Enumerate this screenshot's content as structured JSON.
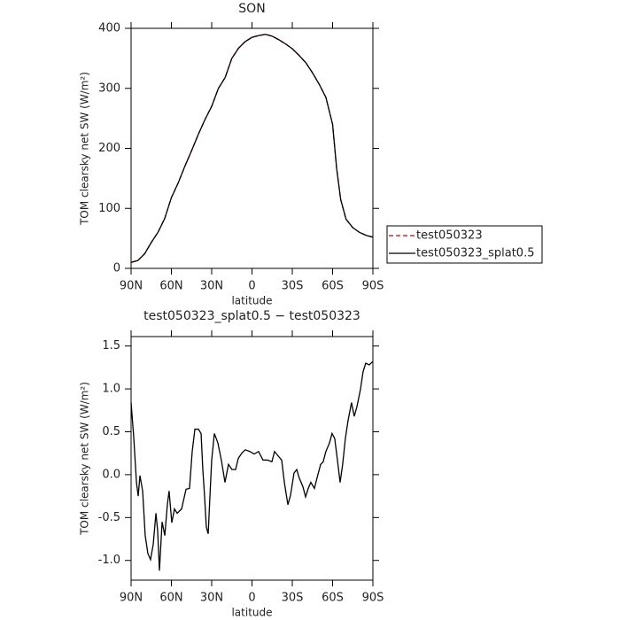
{
  "chart_data": [
    {
      "type": "line",
      "title": "SON",
      "xlabel": "latitude",
      "ylabel": "TOM clearsky net SW (W/m²)",
      "x": [
        90,
        85,
        80,
        75,
        70,
        65,
        60,
        55,
        50,
        45,
        40,
        35,
        30,
        25,
        20,
        15,
        10,
        5,
        0,
        -5,
        -10,
        -15,
        -20,
        -25,
        -30,
        -35,
        -40,
        -45,
        -50,
        -55,
        -60,
        -63,
        -66,
        -70,
        -75,
        -80,
        -85,
        -90
      ],
      "series": [
        {
          "name": "test050323",
          "color": "#cc0000",
          "linestyle": "dashed",
          "values": [
            10,
            13,
            24,
            43,
            60,
            83,
            118,
            142,
            170,
            196,
            223,
            248,
            270,
            300,
            318,
            350,
            367,
            378,
            385,
            388,
            390,
            387,
            381,
            374,
            366,
            355,
            343,
            326,
            307,
            285,
            240,
            167,
            115,
            82,
            68,
            60,
            55,
            52
          ]
        },
        {
          "name": "test050323_splat0.5",
          "color": "#000000",
          "linestyle": "solid",
          "values": [
            10,
            13,
            24,
            43,
            60,
            83,
            118,
            142,
            170,
            196,
            223,
            248,
            270,
            300,
            318,
            350,
            367,
            378,
            385,
            388,
            390,
            387,
            381,
            374,
            366,
            355,
            343,
            326,
            307,
            285,
            240,
            167,
            115,
            82,
            68,
            60,
            55,
            52
          ]
        }
      ],
      "xlim": [
        90,
        -90
      ],
      "xticks": [
        {
          "value": 90,
          "label": "90N"
        },
        {
          "value": 60,
          "label": "60N"
        },
        {
          "value": 30,
          "label": "30N"
        },
        0,
        {
          "value": -30,
          "label": "30S"
        },
        {
          "value": -60,
          "label": "60S"
        },
        {
          "value": -90,
          "label": "90S"
        }
      ],
      "ylim": [
        0,
        400
      ],
      "yticks": [
        0,
        100,
        200,
        300,
        400
      ],
      "legend": "right"
    },
    {
      "type": "line",
      "title": "test050323_splat0.5 − test050323",
      "xlabel": "latitude",
      "ylabel": "TOM clearsky net SW (W/m²)",
      "x": [
        90,
        88,
        86,
        84.7,
        83.4,
        81.4,
        79.5,
        77.5,
        75.5,
        73.5,
        71.5,
        70.2,
        68.9,
        66.9,
        64.9,
        63,
        61.7,
        59.7,
        57.7,
        55.7,
        52.4,
        49.1,
        46.5,
        44.5,
        42.5,
        39.9,
        37.9,
        36.6,
        35.3,
        34,
        32.6,
        31.3,
        30,
        28,
        25.4,
        22.8,
        20.1,
        17.5,
        14.9,
        12.2,
        10.2,
        7.6,
        5,
        1.6,
        -1.6,
        -4.9,
        -8.2,
        -11.5,
        -14.8,
        -16.8,
        -19.4,
        -22.1,
        -24.1,
        -26.7,
        -28.7,
        -31.3,
        -33.3,
        -35.2,
        -37.9,
        -39.9,
        -41.9,
        -43.8,
        -46.5,
        -48.4,
        -51.1,
        -53,
        -55,
        -57.7,
        -59.6,
        -61.6,
        -63.6,
        -65.6,
        -67.5,
        -69.5,
        -71.5,
        -74.1,
        -76.1,
        -78.1,
        -80.7,
        -82.7,
        -84.7,
        -87.3,
        -90
      ],
      "series": [
        {
          "color": "#000000",
          "linestyle": "solid",
          "values": [
            0.84,
            0.43,
            -0.09,
            -0.25,
            -0.01,
            -0.19,
            -0.71,
            -0.92,
            -0.99,
            -0.81,
            -0.45,
            -0.66,
            -1.12,
            -0.55,
            -0.71,
            -0.35,
            -0.19,
            -0.56,
            -0.4,
            -0.45,
            -0.4,
            -0.17,
            -0.16,
            0.27,
            0.53,
            0.53,
            0.48,
            0.06,
            -0.25,
            -0.61,
            -0.69,
            -0.25,
            0.17,
            0.48,
            0.37,
            0.17,
            -0.09,
            0.12,
            0.06,
            0.06,
            0.19,
            0.25,
            0.29,
            0.27,
            0.24,
            0.27,
            0.17,
            0.17,
            0.15,
            0.27,
            0.22,
            0.17,
            -0.09,
            -0.35,
            -0.24,
            0.02,
            0.06,
            -0.04,
            -0.14,
            -0.26,
            -0.16,
            -0.09,
            -0.16,
            -0.04,
            0.12,
            0.15,
            0.27,
            0.37,
            0.48,
            0.42,
            0.17,
            -0.09,
            0.12,
            0.42,
            0.63,
            0.84,
            0.68,
            0.79,
            0.99,
            1.2,
            1.3,
            1.28,
            1.32
          ]
        }
      ],
      "xlim": [
        90,
        -90
      ],
      "xticks": [
        {
          "value": 90,
          "label": "90N"
        },
        {
          "value": 60,
          "label": "60N"
        },
        {
          "value": 30,
          "label": "30N"
        },
        0,
        {
          "value": -30,
          "label": "30S"
        },
        {
          "value": -60,
          "label": "60S"
        },
        {
          "value": -90,
          "label": "90S"
        }
      ],
      "ylim": [
        -1.23,
        1.61
      ],
      "yticks": [
        {
          "value": -1,
          "label": "-1.0"
        },
        -0.5,
        {
          "value": 0,
          "label": "0.0"
        },
        0.5,
        {
          "value": 1,
          "label": "1.0"
        },
        1.5
      ]
    }
  ]
}
